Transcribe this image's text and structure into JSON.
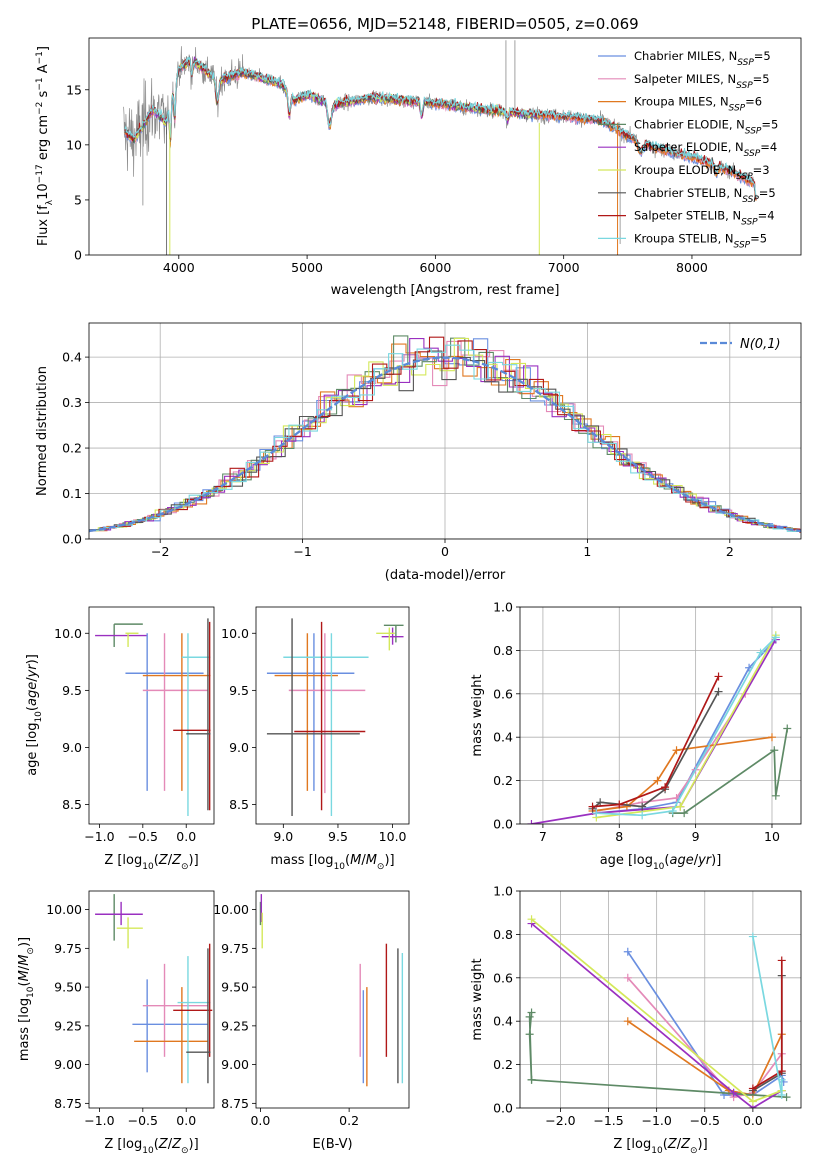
{
  "figure": {
    "title": "PLATE=0656, MJD=52148, FIBERID=0505, z=0.069"
  },
  "colors": {
    "chabrier_miles": "#6a8fe0",
    "salpeter_miles": "#e48ab8",
    "kroupa_miles": "#e07820",
    "chabrier_elodie": "#5e8a66",
    "salpeter_elodie": "#9a30c0",
    "kroupa_elodie": "#d4e85a",
    "chabrier_stelib": "#555555",
    "salpeter_stelib": "#b01818",
    "kroupa_stelib": "#7ad8e0",
    "data": "#8a8a8a",
    "normal": "#5a8ad8"
  },
  "chart_data": [
    {
      "id": "spectrum",
      "type": "line",
      "xlabel": "wavelength [Angstrom, rest frame]",
      "ylabel": "Flux [f_λ10^-17 erg cm^-2 s^-1 A^-1]",
      "xlim": [
        3300,
        8850
      ],
      "ylim": [
        0,
        19.7
      ],
      "xticks": [
        4000,
        5000,
        6000,
        7000,
        8000
      ],
      "yticks": [
        0,
        5,
        10,
        15
      ],
      "legend_position": "top-right",
      "legend": [
        {
          "key": "chabrier_miles",
          "label": "Chabrier MILES, N",
          "sub": "SSP",
          "suffix": "=5"
        },
        {
          "key": "salpeter_miles",
          "label": "Salpeter MILES, N",
          "sub": "SSP",
          "suffix": "=5"
        },
        {
          "key": "kroupa_miles",
          "label": "Kroupa MILES, N",
          "sub": "SSP",
          "suffix": "=6"
        },
        {
          "key": "chabrier_elodie",
          "label": "Chabrier ELODIE, N",
          "sub": "SSP",
          "suffix": "=5"
        },
        {
          "key": "salpeter_elodie",
          "label": "Salpeter ELODIE, N",
          "sub": "SSP",
          "suffix": "=4"
        },
        {
          "key": "kroupa_elodie",
          "label": "Kroupa ELODIE, N",
          "sub": "SSP",
          "suffix": "=3"
        },
        {
          "key": "chabrier_stelib",
          "label": "Chabrier STELIB, N",
          "sub": "SSP",
          "suffix": "=5"
        },
        {
          "key": "salpeter_stelib",
          "label": "Salpeter STELIB, N",
          "sub": "SSP",
          "suffix": "=4"
        },
        {
          "key": "kroupa_stelib",
          "label": "Kroupa STELIB, N",
          "sub": "SSP",
          "suffix": "=5"
        }
      ],
      "continuum": {
        "x": [
          3570,
          3650,
          3800,
          3900,
          4000,
          4100,
          4300,
          4500,
          4800,
          4900,
          5000,
          5200,
          5500,
          6000,
          6300,
          6500,
          6700,
          7000,
          7300,
          7500,
          7700,
          8000,
          8200,
          8500
        ],
        "y": [
          11.2,
          10.5,
          13.2,
          12.0,
          16.8,
          17.8,
          15.8,
          16.6,
          15.5,
          14.0,
          14.6,
          13.6,
          14.3,
          13.8,
          13.3,
          13.1,
          12.8,
          12.6,
          12.2,
          10.8,
          9.8,
          8.9,
          8.1,
          6.5
        ]
      }
    },
    {
      "id": "residuals",
      "type": "line",
      "xlabel": "(data-model)/error",
      "ylabel": "Normed distribution",
      "xlim": [
        -2.5,
        2.5
      ],
      "ylim": [
        0,
        0.475
      ],
      "xticks": [
        -2,
        -1,
        0,
        1,
        2
      ],
      "yticks": [
        0.0,
        0.1,
        0.2,
        0.3,
        0.4
      ],
      "grid": true,
      "legend_position": "top-right",
      "legend_label": "N(0,1)",
      "bin_width": 0.1
    },
    {
      "id": "age_vs_z",
      "type": "scatter",
      "xlabel": "Z [log10(Z/Z⊙)]",
      "ylabel": "age  [log10(age/yr)]",
      "xlim": [
        -1.12,
        0.32
      ],
      "ylim": [
        8.33,
        10.23
      ],
      "xticks": [
        -1.0,
        -0.5,
        0.0
      ],
      "yticks": [
        8.5,
        9.0,
        9.5,
        10.0
      ],
      "points": [
        {
          "key": "chabrier_elodie",
          "x": -0.83,
          "y": 10.08,
          "xl": -0.83,
          "xh": -0.5,
          "yl": 9.88,
          "yh": 10.08
        },
        {
          "key": "salpeter_elodie",
          "x": -0.75,
          "y": 9.98,
          "xl": -1.05,
          "xh": -0.45,
          "yl": 9.98,
          "yh": 9.98
        },
        {
          "key": "kroupa_elodie",
          "x": -0.67,
          "y": 10.0,
          "xl": -0.7,
          "xh": -0.55,
          "yl": 9.88,
          "yh": 10.0
        },
        {
          "key": "chabrier_miles",
          "x": -0.45,
          "y": 9.65,
          "xl": -0.7,
          "xh": 0.2,
          "yl": 8.62,
          "yh": 10.0
        },
        {
          "key": "salpeter_miles",
          "x": -0.25,
          "y": 9.5,
          "xl": -0.5,
          "xh": 0.25,
          "yl": 8.62,
          "yh": 10.0
        },
        {
          "key": "kroupa_miles",
          "x": -0.05,
          "y": 9.63,
          "xl": -0.5,
          "xh": 0.28,
          "yl": 8.62,
          "yh": 10.0
        },
        {
          "key": "kroupa_stelib",
          "x": 0.02,
          "y": 9.79,
          "xl": -0.05,
          "xh": 0.28,
          "yl": 8.4,
          "yh": 10.0
        },
        {
          "key": "salpeter_stelib",
          "x": 0.27,
          "y": 9.15,
          "xl": -0.15,
          "xh": 0.28,
          "yl": 8.45,
          "yh": 10.1
        },
        {
          "key": "chabrier_stelib",
          "x": 0.25,
          "y": 9.12,
          "xl": 0.0,
          "xh": 0.28,
          "yl": 8.45,
          "yh": 10.13
        }
      ]
    },
    {
      "id": "age_vs_mass",
      "type": "scatter",
      "xlabel": "mass [log10(M/M⊙)]",
      "ylabel": "",
      "xlim": [
        8.75,
        10.15
      ],
      "ylim": [
        8.33,
        10.23
      ],
      "xticks": [
        9.0,
        9.5,
        10.0
      ],
      "yticks": [
        8.5,
        9.0,
        9.5,
        10.0
      ],
      "points": [
        {
          "key": "chabrier_elodie",
          "x": 10.03,
          "y": 10.07,
          "xl": 9.92,
          "xh": 10.1,
          "yl": 9.92,
          "yh": 10.07
        },
        {
          "key": "salpeter_elodie",
          "x": 10.0,
          "y": 9.97,
          "xl": 9.9,
          "xh": 10.1,
          "yl": 9.9,
          "yh": 10.05
        },
        {
          "key": "kroupa_elodie",
          "x": 9.97,
          "y": 10.0,
          "xl": 9.85,
          "xh": 10.02,
          "yl": 9.85,
          "yh": 10.05
        },
        {
          "key": "chabrier_miles",
          "x": 9.28,
          "y": 9.65,
          "xl": 8.85,
          "xh": 9.65,
          "yl": 8.62,
          "yh": 10.0
        },
        {
          "key": "salpeter_miles",
          "x": 9.38,
          "y": 9.5,
          "xl": 9.05,
          "xh": 9.75,
          "yl": 8.6,
          "yh": 10.0
        },
        {
          "key": "kroupa_miles",
          "x": 9.22,
          "y": 9.63,
          "xl": 8.92,
          "xh": 9.5,
          "yl": 8.62,
          "yh": 10.0
        },
        {
          "key": "kroupa_stelib",
          "x": 9.44,
          "y": 9.79,
          "xl": 9.0,
          "xh": 9.78,
          "yl": 8.4,
          "yh": 10.0
        },
        {
          "key": "salpeter_stelib",
          "x": 9.35,
          "y": 9.14,
          "xl": 9.1,
          "xh": 9.75,
          "yl": 8.45,
          "yh": 10.1
        },
        {
          "key": "chabrier_stelib",
          "x": 9.08,
          "y": 9.12,
          "xl": 8.85,
          "xh": 9.7,
          "yl": 8.4,
          "yh": 10.13
        }
      ]
    },
    {
      "id": "mass_weight_vs_age",
      "type": "line",
      "xlabel": "age  [log10(age/yr)]",
      "ylabel": "mass weight",
      "xlim": [
        6.7,
        10.38
      ],
      "ylim": [
        0,
        1
      ],
      "xticks": [
        7,
        8,
        9,
        10
      ],
      "yticks": [
        0.0,
        0.2,
        0.4,
        0.6,
        0.8,
        1.0
      ],
      "grid": true,
      "series": [
        {
          "key": "chabrier_miles",
          "x": [
            7.7,
            8.3,
            8.75,
            9.7,
            10.05
          ],
          "y": [
            0.05,
            0.07,
            0.1,
            0.72,
            0.85
          ]
        },
        {
          "key": "salpeter_miles",
          "x": [
            7.7,
            8.3,
            8.75,
            9.0,
            9.65
          ],
          "y": [
            0.06,
            0.1,
            0.12,
            0.25,
            0.6
          ]
        },
        {
          "key": "kroupa_miles",
          "x": [
            7.65,
            8.1,
            8.5,
            8.75,
            10.0
          ],
          "y": [
            0.06,
            0.08,
            0.2,
            0.34,
            0.4
          ]
        },
        {
          "key": "chabrier_elodie",
          "x": [
            8.7,
            8.85,
            10.03,
            10.05,
            10.2
          ],
          "y": [
            0.05,
            0.05,
            0.34,
            0.13,
            0.44
          ]
        },
        {
          "key": "salpeter_elodie",
          "x": [
            6.85,
            7.7,
            8.8,
            10.05
          ],
          "y": [
            0.0,
            0.05,
            0.08,
            0.85
          ]
        },
        {
          "key": "kroupa_elodie",
          "x": [
            7.7,
            8.8,
            10.05
          ],
          "y": [
            0.03,
            0.08,
            0.87
          ]
        },
        {
          "key": "chabrier_stelib",
          "x": [
            7.65,
            7.75,
            8.3,
            8.6,
            9.3
          ],
          "y": [
            0.07,
            0.1,
            0.08,
            0.16,
            0.61
          ]
        },
        {
          "key": "salpeter_stelib",
          "x": [
            7.65,
            8.0,
            8.6,
            9.3
          ],
          "y": [
            0.08,
            0.09,
            0.17,
            0.68
          ]
        },
        {
          "key": "kroupa_stelib",
          "x": [
            7.7,
            8.3,
            8.7,
            9.85,
            10.05
          ],
          "y": [
            0.05,
            0.04,
            0.06,
            0.79,
            0.86
          ]
        }
      ]
    },
    {
      "id": "mass_vs_z",
      "type": "scatter",
      "xlabel": "Z [log10(Z/Z⊙)]",
      "ylabel": "mass [log10(M/M⊙)]",
      "xlim": [
        -1.12,
        0.32
      ],
      "ylim": [
        8.72,
        10.12
      ],
      "xticks": [
        -1.0,
        -0.5,
        0.0
      ],
      "yticks": [
        8.75,
        9.0,
        9.25,
        9.5,
        9.75,
        10.0
      ],
      "points": [
        {
          "key": "chabrier_elodie",
          "x": -0.83,
          "y": 10.0,
          "xl": -0.83,
          "xh": -0.83,
          "yl": 9.8,
          "yh": 10.1
        },
        {
          "key": "salpeter_elodie",
          "x": -0.75,
          "y": 9.97,
          "xl": -1.05,
          "xh": -0.5,
          "yl": 9.9,
          "yh": 10.05
        },
        {
          "key": "kroupa_elodie",
          "x": -0.67,
          "y": 9.88,
          "xl": -0.8,
          "xh": -0.5,
          "yl": 9.75,
          "yh": 9.95
        },
        {
          "key": "chabrier_miles",
          "x": -0.45,
          "y": 9.26,
          "xl": -0.62,
          "xh": 0.25,
          "yl": 8.95,
          "yh": 9.55
        },
        {
          "key": "salpeter_miles",
          "x": -0.25,
          "y": 9.38,
          "xl": -0.5,
          "xh": 0.25,
          "yl": 9.05,
          "yh": 9.65
        },
        {
          "key": "kroupa_miles",
          "x": -0.05,
          "y": 9.15,
          "xl": -0.6,
          "xh": 0.25,
          "yl": 8.88,
          "yh": 9.5
        },
        {
          "key": "kroupa_stelib",
          "x": 0.02,
          "y": 9.4,
          "xl": -0.1,
          "xh": 0.28,
          "yl": 8.88,
          "yh": 9.7
        },
        {
          "key": "salpeter_stelib",
          "x": 0.27,
          "y": 9.35,
          "xl": -0.15,
          "xh": 0.3,
          "yl": 9.05,
          "yh": 9.78
        },
        {
          "key": "chabrier_stelib",
          "x": 0.25,
          "y": 9.08,
          "xl": 0.0,
          "xh": 0.28,
          "yl": 8.88,
          "yh": 9.75
        }
      ]
    },
    {
      "id": "mass_vs_ebv",
      "type": "scatter",
      "xlabel": "E(B-V)",
      "ylabel": "",
      "xlim": [
        -0.01,
        0.335
      ],
      "ylim": [
        8.72,
        10.12
      ],
      "xticks": [
        0.0,
        0.2
      ],
      "yticks": [
        8.75,
        9.0,
        9.25,
        9.5,
        9.75,
        10.0
      ],
      "points": [
        {
          "key": "chabrier_elodie",
          "x": 0.0,
          "y": 10.0,
          "xl": 0.0,
          "xh": 0.0,
          "yl": 9.9,
          "yh": 10.05
        },
        {
          "key": "salpeter_elodie",
          "x": 0.002,
          "y": 10.0,
          "xl": 0.002,
          "xh": 0.002,
          "yl": 9.92,
          "yh": 10.1
        },
        {
          "key": "kroupa_elodie",
          "x": 0.004,
          "y": 9.85,
          "xl": 0.004,
          "xh": 0.004,
          "yl": 9.75,
          "yh": 9.98
        },
        {
          "key": "salpeter_miles",
          "x": 0.225,
          "y": 9.35,
          "xl": 0.225,
          "xh": 0.225,
          "yl": 9.05,
          "yh": 9.65
        },
        {
          "key": "chabrier_miles",
          "x": 0.232,
          "y": 9.2,
          "xl": 0.232,
          "xh": 0.232,
          "yl": 8.88,
          "yh": 9.48
        },
        {
          "key": "kroupa_miles",
          "x": 0.24,
          "y": 9.2,
          "xl": 0.24,
          "xh": 0.24,
          "yl": 8.86,
          "yh": 9.5
        },
        {
          "key": "salpeter_stelib",
          "x": 0.284,
          "y": 9.4,
          "xl": 0.284,
          "xh": 0.284,
          "yl": 9.05,
          "yh": 9.78
        },
        {
          "key": "chabrier_stelib",
          "x": 0.31,
          "y": 9.3,
          "xl": 0.31,
          "xh": 0.31,
          "yl": 8.88,
          "yh": 9.75
        },
        {
          "key": "kroupa_stelib",
          "x": 0.32,
          "y": 9.3,
          "xl": 0.32,
          "xh": 0.32,
          "yl": 8.88,
          "yh": 9.72
        }
      ]
    },
    {
      "id": "mass_weight_vs_z",
      "type": "line",
      "xlabel": "Z [log10(Z/Z⊙)]",
      "ylabel": "mass weight",
      "xlim": [
        -2.42,
        0.5
      ],
      "ylim": [
        0,
        1
      ],
      "xticks": [
        -2.0,
        -1.5,
        -1.0,
        -0.5,
        0.0
      ],
      "yticks": [
        0.0,
        0.2,
        0.4,
        0.6,
        0.8,
        1.0
      ],
      "grid": true,
      "series": [
        {
          "key": "chabrier_miles",
          "x": [
            -1.3,
            -0.3,
            0.0,
            0.3,
            0.32
          ],
          "y": [
            0.72,
            0.06,
            0.06,
            0.15,
            0.12
          ]
        },
        {
          "key": "salpeter_miles",
          "x": [
            -1.3,
            -0.2,
            0.0,
            0.3
          ],
          "y": [
            0.6,
            0.05,
            0.07,
            0.25
          ]
        },
        {
          "key": "kroupa_miles",
          "x": [
            -1.3,
            -0.25,
            0.0,
            0.3
          ],
          "y": [
            0.4,
            0.08,
            0.06,
            0.34
          ]
        },
        {
          "key": "chabrier_elodie",
          "x": [
            -2.3,
            -2.32,
            -2.3,
            -2.32,
            -2.3,
            0.35
          ],
          "y": [
            0.44,
            0.34,
            0.13,
            0.42,
            0.13,
            0.05
          ]
        },
        {
          "key": "salpeter_elodie",
          "x": [
            -2.3,
            -0.2,
            0.0,
            0.3
          ],
          "y": [
            0.85,
            0.07,
            0.0,
            0.08
          ]
        },
        {
          "key": "kroupa_elodie",
          "x": [
            -2.3,
            0.0,
            0.3
          ],
          "y": [
            0.87,
            0.03,
            0.08
          ]
        },
        {
          "key": "chabrier_stelib",
          "x": [
            0.0,
            0.3,
            0.3
          ],
          "y": [
            0.08,
            0.16,
            0.61
          ]
        },
        {
          "key": "salpeter_stelib",
          "x": [
            0.0,
            0.3,
            0.3
          ],
          "y": [
            0.09,
            0.17,
            0.68
          ]
        },
        {
          "key": "kroupa_stelib",
          "x": [
            0.0,
            0.3,
            0.3
          ],
          "y": [
            0.79,
            0.06,
            0.13
          ]
        }
      ]
    }
  ]
}
